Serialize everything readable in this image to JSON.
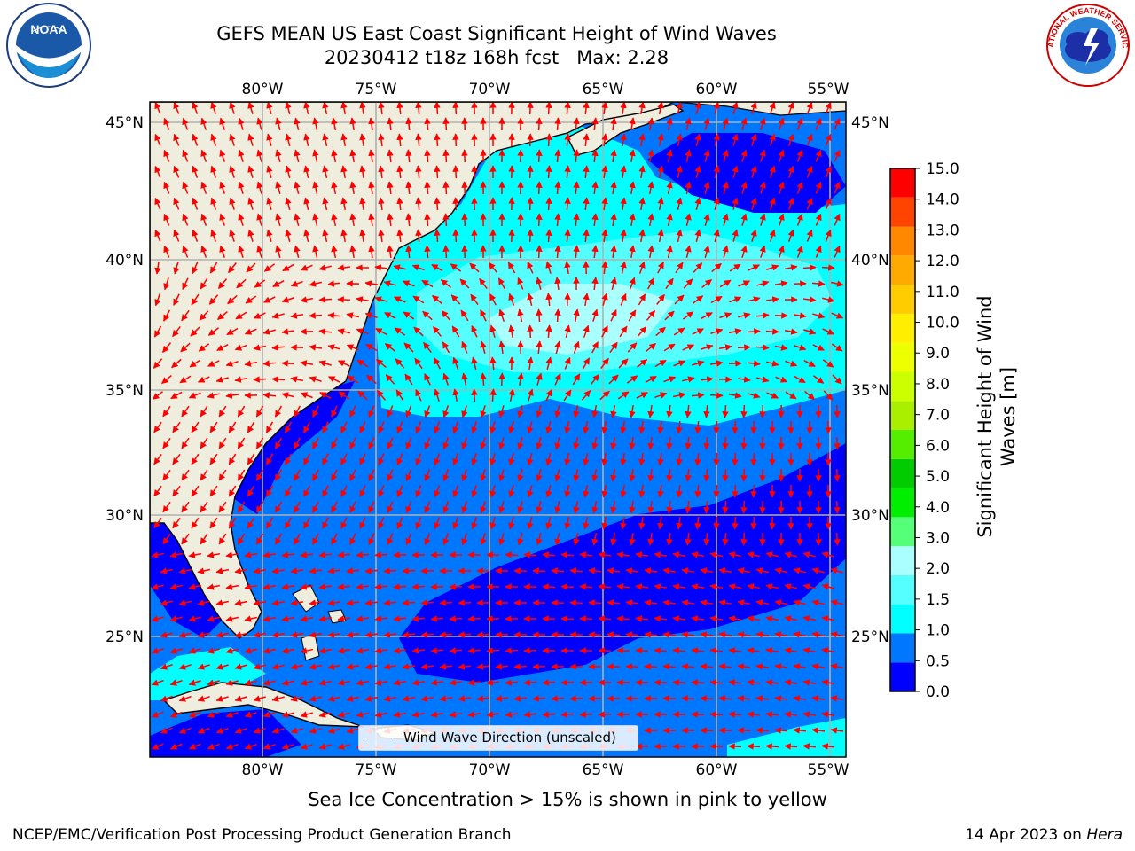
{
  "title": {
    "line1": "GEFS MEAN US East Coast Significant Height of Wind Waves",
    "line2": "20230412 t18z 168h fcst   Max: 2.28"
  },
  "logos": {
    "left": {
      "text": "NOAA",
      "icon": "noaa-logo"
    },
    "right": {
      "icon": "national-weather-service-logo",
      "text": "NATIONAL WEATHER SERVICE"
    }
  },
  "map": {
    "lon_labels": [
      "80°W",
      "75°W",
      "70°W",
      "65°W",
      "60°W",
      "55°W"
    ],
    "lat_labels": [
      "45°N",
      "40°N",
      "35°N",
      "30°N",
      "25°N"
    ],
    "colors": {
      "land": "#efedde",
      "coast": "#000000",
      "grid": "#b0b0b0",
      "arrow": "#ff0000"
    }
  },
  "colorbar": {
    "title": "Significant Height of Wind Waves [m]",
    "levels": [
      "0.0",
      "0.5",
      "1.0",
      "1.5",
      "2.0",
      "3.0",
      "4.0",
      "5.0",
      "6.0",
      "7.0",
      "8.0",
      "9.0",
      "10.0",
      "11.0",
      "12.0",
      "13.0",
      "14.0",
      "15.0"
    ],
    "colors": [
      "#0000ff",
      "#0077ff",
      "#00ffff",
      "#55ffff",
      "#aaffff",
      "#55ff77",
      "#00ee00",
      "#00cc00",
      "#55ee00",
      "#aaee00",
      "#ccff00",
      "#eeff00",
      "#ffee00",
      "#ffcc00",
      "#ffaa00",
      "#ff8800",
      "#ff4400",
      "#ff0000"
    ]
  },
  "legend": {
    "label": "Wind Wave Direction (unscaled)"
  },
  "sea_ice_note": "Sea Ice Concentration > 15% is shown in pink to yellow",
  "footer": {
    "left": "NCEP/EMC/Verification Post Processing Product Generation Branch",
    "right_date": "14 Apr 2023 on ",
    "right_host": "Hera"
  }
}
